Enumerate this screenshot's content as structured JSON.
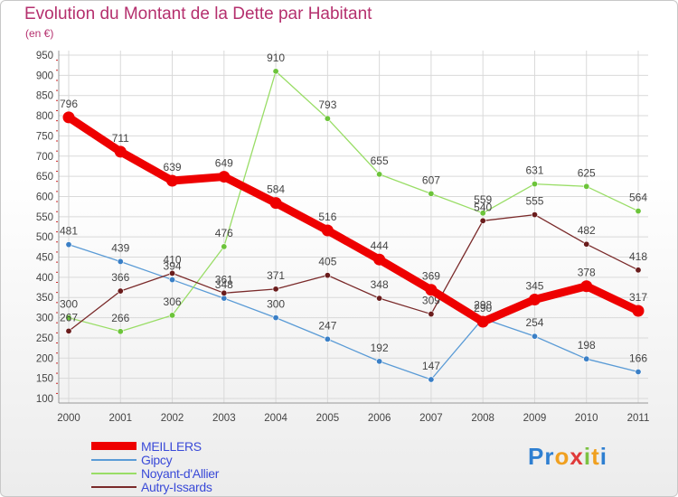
{
  "title": "Evolution du Montant de la Dette par Habitant",
  "unit_label": "(en €)",
  "logo": {
    "letters": [
      {
        "ch": "P",
        "color": "#2e7fd1"
      },
      {
        "ch": "r",
        "color": "#2e7fd1"
      },
      {
        "ch": "o",
        "color": "#f0a020"
      },
      {
        "ch": "x",
        "color": "#e03a3a"
      },
      {
        "ch": "i",
        "color": "#7cc242"
      },
      {
        "ch": "t",
        "color": "#f0a020"
      },
      {
        "ch": "i",
        "color": "#2e7fd1"
      }
    ]
  },
  "chart_data": {
    "type": "line",
    "x": [
      "2000",
      "2001",
      "2002",
      "2003",
      "2004",
      "2005",
      "2006",
      "2007",
      "2008",
      "2009",
      "2010",
      "2011"
    ],
    "ylim": [
      100,
      950
    ],
    "yticks": [
      100,
      150,
      200,
      250,
      300,
      350,
      400,
      450,
      500,
      550,
      600,
      650,
      700,
      750,
      800,
      850,
      900,
      950
    ],
    "grid": true,
    "series": [
      {
        "name": "Gipcy",
        "color": "#5a9bd6",
        "marker": "#3a7fc6",
        "values": [
          481,
          439,
          394,
          348,
          300,
          247,
          192,
          147,
          298,
          254,
          198,
          166
        ]
      },
      {
        "name": "Noyant-d'Allier",
        "color": "#99dd66",
        "marker": "#6cc43a",
        "values": [
          300,
          266,
          306,
          476,
          910,
          793,
          655,
          607,
          559,
          631,
          625,
          564
        ]
      },
      {
        "name": "Autry-Issards",
        "color": "#7a2a2a",
        "marker": "#6a1c1c",
        "values": [
          267,
          366,
          410,
          361,
          371,
          405,
          348,
          309,
          540,
          555,
          482,
          418
        ]
      },
      {
        "name": "MEILLERS",
        "color": "#ee0000",
        "marker": "#ee0000",
        "values": [
          796,
          711,
          639,
          649,
          584,
          516,
          444,
          369,
          290,
          345,
          378,
          317
        ]
      }
    ],
    "legend": [
      {
        "name": "MEILLERS",
        "color": "#ee0000"
      },
      {
        "name": "Gipcy",
        "color": "#5a9bd6"
      },
      {
        "name": "Noyant-d'Allier",
        "color": "#99dd66"
      },
      {
        "name": "Autry-Issards",
        "color": "#7a2a2a"
      }
    ],
    "legend_position": "bottom-left"
  }
}
